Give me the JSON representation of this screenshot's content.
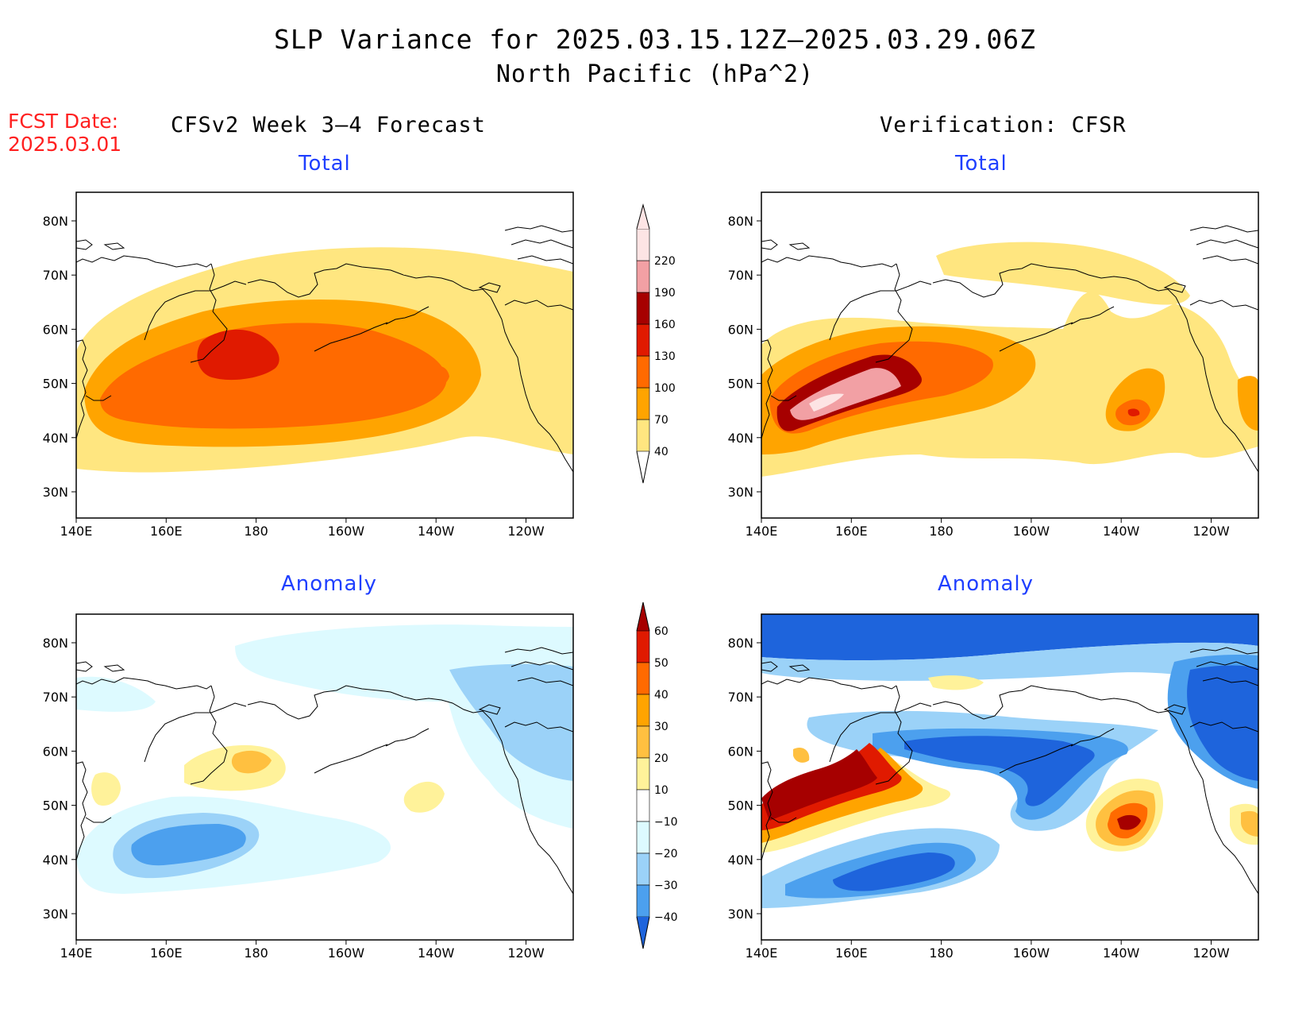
{
  "title": "SLP Variance for 2025.03.15.12Z–2025.03.29.06Z",
  "subtitle": "North Pacific (hPa^2)",
  "fcst_date_label": "FCST Date:",
  "fcst_date_value": "2025.03.01",
  "left_column_title": "CFSv2 Week 3–4 Forecast",
  "right_column_title": "Verification: CFSR",
  "panels": [
    {
      "id": "fcst-total",
      "title": "Total"
    },
    {
      "id": "verif-total",
      "title": "Total"
    },
    {
      "id": "fcst-anomaly",
      "title": "Anomaly"
    },
    {
      "id": "verif-anomaly",
      "title": "Anomaly"
    }
  ],
  "axes": {
    "lon_ticks": [
      "140E",
      "160E",
      "180",
      "160W",
      "140W",
      "120W"
    ],
    "lat_ticks": [
      "80N",
      "70N",
      "60N",
      "50N",
      "40N",
      "30N"
    ]
  },
  "colorbars": {
    "total": {
      "levels": [
        "40",
        "70",
        "100",
        "130",
        "160",
        "190",
        "220"
      ],
      "colors": [
        "#ffe680",
        "#ffa400",
        "#ff6a00",
        "#e01a00",
        "#a60000",
        "#f2a0a4",
        "#fde4e4"
      ]
    },
    "anomaly": {
      "levels": [
        "60",
        "50",
        "40",
        "30",
        "20",
        "10",
        "−10",
        "−20",
        "−30",
        "−40"
      ],
      "colors": [
        "#a60000",
        "#e01a00",
        "#ff6a00",
        "#ffa400",
        "#ffc040",
        "#fff29a",
        "#ffffff",
        "#ddfaff",
        "#9bd2f8",
        "#4ca0ee",
        "#1e64dc"
      ]
    }
  }
}
